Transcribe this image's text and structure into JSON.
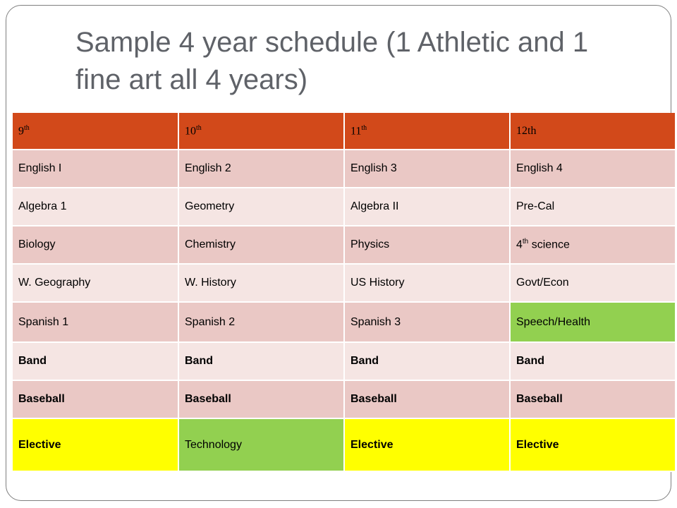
{
  "title": "Sample 4 year schedule (1 Athletic  and 1 fine art all 4 years)",
  "headers": [
    {
      "base": "9",
      "sup": "th"
    },
    {
      "base": "10",
      "sup": "th"
    },
    {
      "base": "11",
      "sup": "th"
    },
    {
      "base": "12th",
      "sup": ""
    }
  ],
  "rows": [
    [
      "English I",
      "English 2",
      "English 3",
      "English 4"
    ],
    [
      "Algebra 1",
      "Geometry",
      "Algebra II",
      "Pre-Cal"
    ],
    [
      "Biology",
      "Chemistry",
      "Physics",
      {
        "base": "4",
        "sup": "th",
        "rest": " science"
      }
    ],
    [
      "W. Geography",
      "W. History",
      "US History",
      "Govt/Econ"
    ],
    [
      "Spanish 1",
      "Spanish 2",
      "Spanish 3",
      "Speech/Health"
    ],
    [
      "Band",
      "Band",
      "Band",
      "Band"
    ],
    [
      "Baseball",
      "Baseball",
      "Baseball",
      "Baseball"
    ],
    [
      "Elective",
      "Technology",
      "Elective",
      "Elective"
    ]
  ],
  "colors": {
    "header": "#d2491a",
    "row_dark": "#eac8c5",
    "row_light": "#f5e5e3",
    "highlight_green": "#92d050",
    "highlight_yellow": "#ffff00",
    "title_text": "#5f6268"
  }
}
